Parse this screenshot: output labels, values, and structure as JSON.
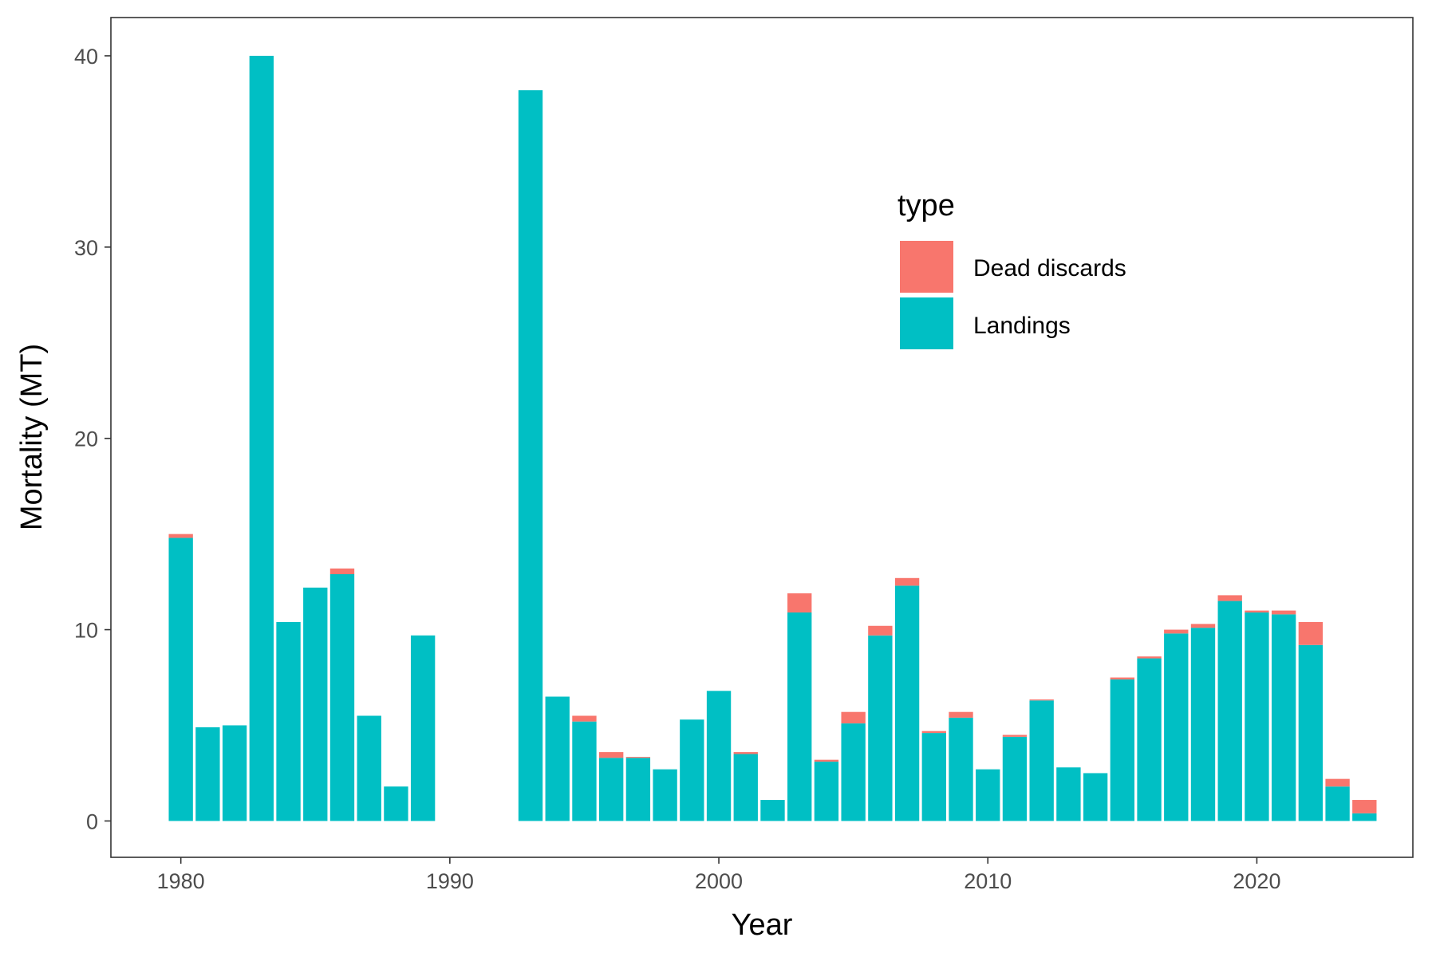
{
  "chart_data": {
    "type": "bar",
    "stacked": true,
    "title": "",
    "xlabel": "Year",
    "ylabel": "Mortality (MT)",
    "xlim": [
      1977.4,
      2025.8
    ],
    "ylim": [
      -1.9,
      42.0
    ],
    "x_ticks": [
      1980,
      1990,
      2000,
      2010,
      2020
    ],
    "y_ticks": [
      0,
      10,
      20,
      30,
      40
    ],
    "grid": false,
    "legend": {
      "title": "type",
      "placement": "top-right-inside",
      "entries": [
        "Dead discards",
        "Landings"
      ]
    },
    "colors": {
      "Dead discards": "#F8766D",
      "Landings": "#00BFC4"
    },
    "x": [
      1980,
      1981,
      1982,
      1983,
      1984,
      1985,
      1986,
      1987,
      1988,
      1989,
      1993,
      1994,
      1995,
      1996,
      1997,
      1998,
      1999,
      2000,
      2001,
      2002,
      2003,
      2004,
      2005,
      2006,
      2007,
      2008,
      2009,
      2010,
      2011,
      2012,
      2013,
      2014,
      2015,
      2016,
      2017,
      2018,
      2019,
      2020,
      2021,
      2022,
      2023,
      2024
    ],
    "series": [
      {
        "name": "Landings",
        "values": [
          14.8,
          4.9,
          5.0,
          40.0,
          10.4,
          12.2,
          12.9,
          5.5,
          1.8,
          9.7,
          38.2,
          6.5,
          5.2,
          3.3,
          3.3,
          2.7,
          5.3,
          6.8,
          3.5,
          1.1,
          10.9,
          3.1,
          5.1,
          9.7,
          12.3,
          4.6,
          5.4,
          2.7,
          4.4,
          6.3,
          2.8,
          2.5,
          7.4,
          8.5,
          9.8,
          10.1,
          11.5,
          10.9,
          10.8,
          9.2,
          1.8,
          0.4
        ]
      },
      {
        "name": "Dead discards",
        "values": [
          0.2,
          0.0,
          0.0,
          0.0,
          0.0,
          0.0,
          0.3,
          0.0,
          0.0,
          0.0,
          0.0,
          0.0,
          0.3,
          0.3,
          0.05,
          0.0,
          0.0,
          0.0,
          0.1,
          0.0,
          1.0,
          0.1,
          0.6,
          0.5,
          0.4,
          0.1,
          0.3,
          0.0,
          0.1,
          0.05,
          0.0,
          0.0,
          0.1,
          0.1,
          0.2,
          0.2,
          0.3,
          0.1,
          0.2,
          1.2,
          0.4,
          0.7
        ]
      }
    ]
  }
}
